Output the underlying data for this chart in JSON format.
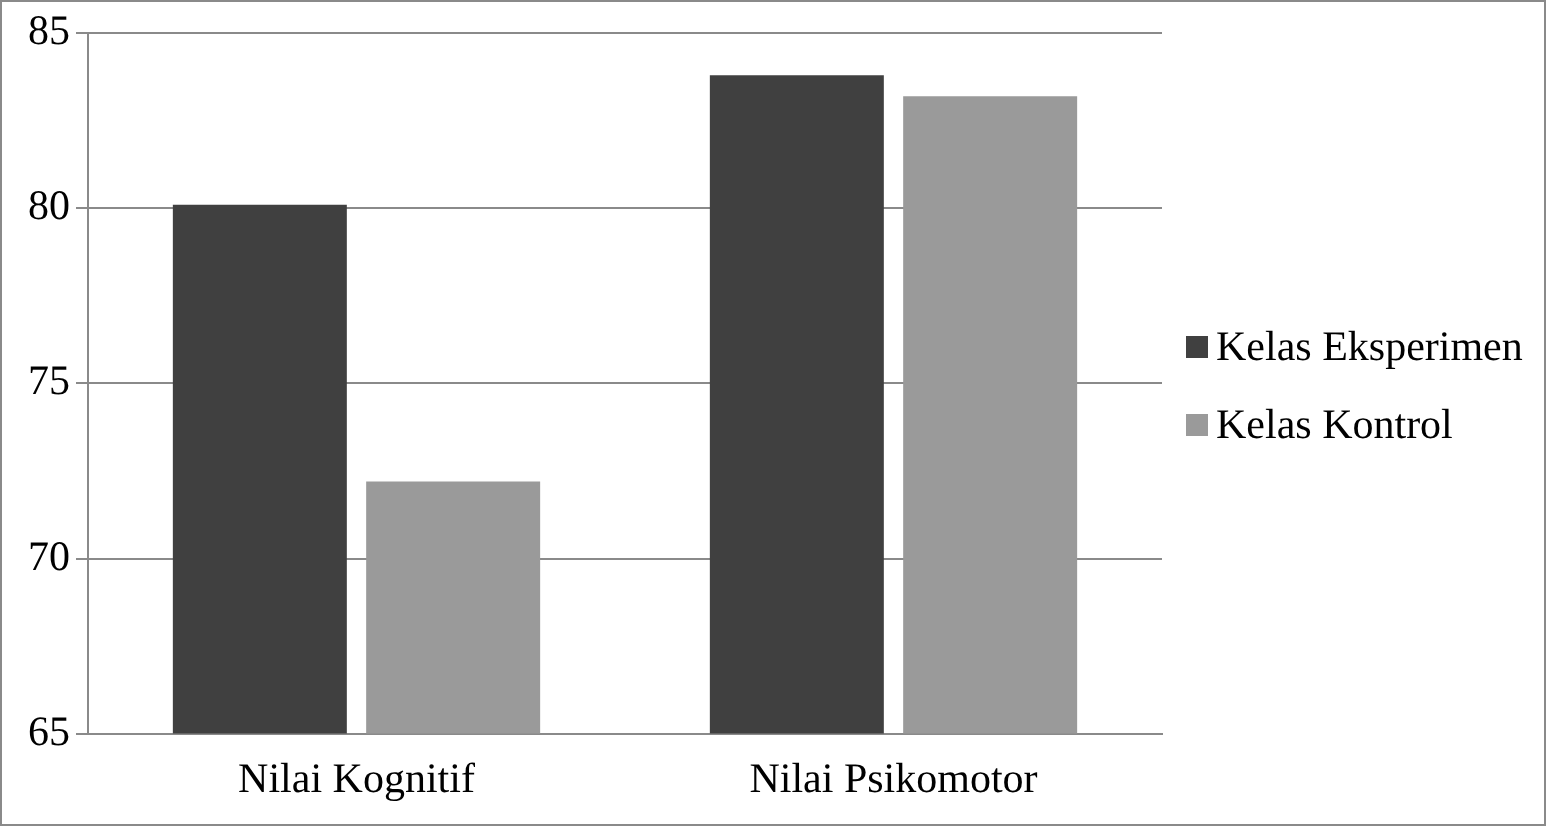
{
  "chart_data": {
    "type": "bar",
    "categories": [
      "Nilai Kognitif",
      "Nilai Psikomotor"
    ],
    "series": [
      {
        "name": "Kelas Eksperimen",
        "color": "#404040",
        "values": [
          80.1,
          83.8
        ]
      },
      {
        "name": "Kelas Kontrol",
        "color": "#9a9a9a",
        "values": [
          72.2,
          83.2
        ]
      }
    ],
    "ylim": [
      65,
      85
    ],
    "yticks": [
      65,
      70,
      75,
      80,
      85
    ],
    "grid": "y",
    "legend": "right"
  }
}
